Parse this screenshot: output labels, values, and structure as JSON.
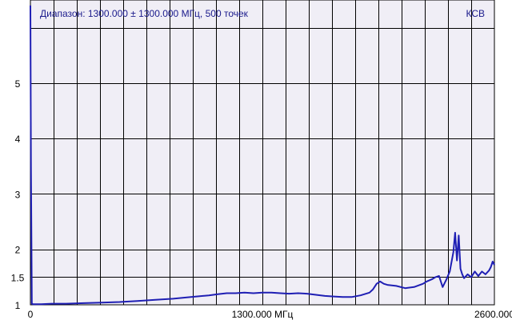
{
  "chart_data": {
    "type": "line",
    "title": "Диапазон: 1300.000 ± 1300.000 МГц, 500 точек",
    "ylabel": "КСВ",
    "xlabel": "",
    "xlim": [
      0,
      2600
    ],
    "ylim": [
      1,
      6.5
    ],
    "grid": true,
    "x_tick_values": [
      0,
      1300,
      2600
    ],
    "x_tick_labels": [
      "0",
      "1300.000 МГц",
      "2600.000"
    ],
    "y_tick_values": [
      1,
      1.5,
      2,
      3,
      4,
      5
    ],
    "y_tick_labels": [
      "1",
      "1.5",
      "2",
      "3",
      "4",
      "5"
    ],
    "series": [
      {
        "color": "#1f1fb4",
        "x": [
          0,
          3,
          8,
          15,
          30,
          60,
          120,
          200,
          300,
          400,
          500,
          600,
          700,
          800,
          900,
          1000,
          1050,
          1100,
          1150,
          1200,
          1250,
          1300,
          1350,
          1400,
          1450,
          1500,
          1550,
          1600,
          1650,
          1700,
          1750,
          1800,
          1850,
          1900,
          1920,
          1940,
          1960,
          1980,
          2000,
          2050,
          2100,
          2150,
          2200,
          2220,
          2250,
          2270,
          2290,
          2310,
          2330,
          2350,
          2370,
          2380,
          2390,
          2400,
          2410,
          2420,
          2430,
          2450,
          2470,
          2490,
          2510,
          2530,
          2550,
          2570,
          2580,
          2590,
          2600
        ],
        "y": [
          6.4,
          3.5,
          1.02,
          1.01,
          1.01,
          1.01,
          1.02,
          1.02,
          1.03,
          1.04,
          1.05,
          1.07,
          1.09,
          1.11,
          1.14,
          1.17,
          1.19,
          1.21,
          1.21,
          1.22,
          1.21,
          1.22,
          1.22,
          1.21,
          1.2,
          1.21,
          1.2,
          1.18,
          1.16,
          1.15,
          1.14,
          1.14,
          1.17,
          1.22,
          1.28,
          1.38,
          1.42,
          1.38,
          1.36,
          1.34,
          1.3,
          1.32,
          1.38,
          1.42,
          1.46,
          1.5,
          1.52,
          1.32,
          1.45,
          1.6,
          1.95,
          2.3,
          1.8,
          2.25,
          1.65,
          1.55,
          1.48,
          1.55,
          1.5,
          1.6,
          1.52,
          1.6,
          1.55,
          1.62,
          1.68,
          1.78,
          1.72
        ]
      }
    ]
  },
  "colors": {
    "plot_background": "#f0eef6",
    "grid": "#000000",
    "trace": "#1f1fb4",
    "header_text": "#1a1a8c"
  }
}
